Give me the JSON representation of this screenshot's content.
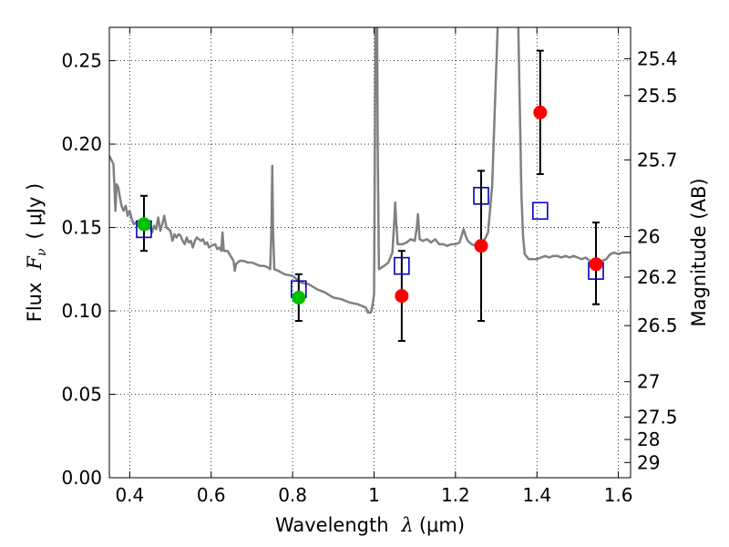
{
  "chart_data": {
    "type": "scatter",
    "xlabel_prefix": "Wavelength",
    "xlabel_symbol": "λ",
    "xlabel_unit": "(μm)",
    "ylabel_prefix": "Flux",
    "ylabel_symbol": "F",
    "ylabel_sub": "ν",
    "ylabel_unit": "( μJy )",
    "y2label": "Magnitude (AB)",
    "xlim": [
      0.35,
      1.63
    ],
    "ylim": [
      0.0,
      0.27
    ],
    "grid": true,
    "x_ticks": [
      0.4,
      0.6,
      0.8,
      1.0,
      1.2,
      1.4,
      1.6
    ],
    "x_tick_labels": [
      "0.4",
      "0.6",
      "0.8",
      "1",
      "1.2",
      "1.4",
      "1.6"
    ],
    "y_ticks": [
      0.0,
      0.05,
      0.1,
      0.15,
      0.2,
      0.25
    ],
    "y_tick_labels": [
      "0.00",
      "0.05",
      "0.10",
      "0.15",
      "0.20",
      "0.25"
    ],
    "mag_ticks": [
      "25.4",
      "25.5",
      "25.7",
      "26",
      "26.2",
      "26.5",
      "27",
      "27.5",
      "28",
      "29"
    ],
    "colors": {
      "model": "#808080",
      "observed": "#ff0000",
      "secondary": "#00c000",
      "model_photometry": "#0000cc",
      "errorbar": "#000000"
    },
    "series": [
      {
        "kind": "line",
        "points": [
          [
            0.35,
            0.193
          ],
          [
            0.36,
            0.188
          ],
          [
            0.365,
            0.16
          ],
          [
            0.368,
            0.176
          ],
          [
            0.372,
            0.174
          ],
          [
            0.376,
            0.168
          ],
          [
            0.38,
            0.163
          ],
          [
            0.385,
            0.16
          ],
          [
            0.39,
            0.163
          ],
          [
            0.395,
            0.157
          ],
          [
            0.4,
            0.16
          ],
          [
            0.405,
            0.155
          ],
          [
            0.41,
            0.152
          ],
          [
            0.415,
            0.153
          ],
          [
            0.42,
            0.151
          ],
          [
            0.425,
            0.15
          ],
          [
            0.43,
            0.152
          ],
          [
            0.435,
            0.149
          ],
          [
            0.44,
            0.151
          ],
          [
            0.445,
            0.149
          ],
          [
            0.45,
            0.15
          ],
          [
            0.455,
            0.147
          ],
          [
            0.46,
            0.151
          ],
          [
            0.465,
            0.149
          ],
          [
            0.47,
            0.156
          ],
          [
            0.475,
            0.148
          ],
          [
            0.48,
            0.152
          ],
          [
            0.485,
            0.157
          ],
          [
            0.49,
            0.15
          ],
          [
            0.495,
            0.149
          ],
          [
            0.5,
            0.148
          ],
          [
            0.505,
            0.142
          ],
          [
            0.51,
            0.146
          ],
          [
            0.515,
            0.144
          ],
          [
            0.52,
            0.146
          ],
          [
            0.525,
            0.145
          ],
          [
            0.53,
            0.142
          ],
          [
            0.535,
            0.14
          ],
          [
            0.54,
            0.144
          ],
          [
            0.545,
            0.141
          ],
          [
            0.55,
            0.142
          ],
          [
            0.555,
            0.138
          ],
          [
            0.56,
            0.142
          ],
          [
            0.565,
            0.144
          ],
          [
            0.57,
            0.143
          ],
          [
            0.575,
            0.142
          ],
          [
            0.58,
            0.143
          ],
          [
            0.585,
            0.14
          ],
          [
            0.59,
            0.141
          ],
          [
            0.595,
            0.138
          ],
          [
            0.6,
            0.139
          ],
          [
            0.61,
            0.14
          ],
          [
            0.615,
            0.137
          ],
          [
            0.62,
            0.138
          ],
          [
            0.625,
            0.136
          ],
          [
            0.628,
            0.147
          ],
          [
            0.631,
            0.136
          ],
          [
            0.64,
            0.136
          ],
          [
            0.65,
            0.132
          ],
          [
            0.655,
            0.13
          ],
          [
            0.658,
            0.124
          ],
          [
            0.661,
            0.128
          ],
          [
            0.67,
            0.13
          ],
          [
            0.68,
            0.13
          ],
          [
            0.69,
            0.129
          ],
          [
            0.7,
            0.129
          ],
          [
            0.71,
            0.128
          ],
          [
            0.72,
            0.127
          ],
          [
            0.73,
            0.127
          ],
          [
            0.74,
            0.126
          ],
          [
            0.745,
            0.125
          ],
          [
            0.748,
            0.15
          ],
          [
            0.75,
            0.187
          ],
          [
            0.752,
            0.15
          ],
          [
            0.755,
            0.125
          ],
          [
            0.765,
            0.124
          ],
          [
            0.78,
            0.122
          ],
          [
            0.8,
            0.121
          ],
          [
            0.82,
            0.117
          ],
          [
            0.84,
            0.116
          ],
          [
            0.86,
            0.113
          ],
          [
            0.88,
            0.111
          ],
          [
            0.9,
            0.108
          ],
          [
            0.92,
            0.107
          ],
          [
            0.94,
            0.105
          ],
          [
            0.96,
            0.104
          ],
          [
            0.98,
            0.102
          ],
          [
            0.985,
            0.099
          ],
          [
            0.992,
            0.099
          ],
          [
            0.996,
            0.103
          ],
          [
            1.0,
            0.11
          ],
          [
            1.002,
            0.2
          ],
          [
            1.004,
            0.3
          ],
          [
            1.007,
            0.3
          ],
          [
            1.009,
            0.2
          ],
          [
            1.012,
            0.125
          ],
          [
            1.025,
            0.127
          ],
          [
            1.035,
            0.129
          ],
          [
            1.045,
            0.135
          ],
          [
            1.05,
            0.155
          ],
          [
            1.052,
            0.165
          ],
          [
            1.054,
            0.155
          ],
          [
            1.058,
            0.14
          ],
          [
            1.07,
            0.14
          ],
          [
            1.08,
            0.141
          ],
          [
            1.09,
            0.143
          ],
          [
            1.1,
            0.142
          ],
          [
            1.105,
            0.15
          ],
          [
            1.108,
            0.158
          ],
          [
            1.112,
            0.143
          ],
          [
            1.12,
            0.142
          ],
          [
            1.13,
            0.143
          ],
          [
            1.14,
            0.141
          ],
          [
            1.15,
            0.143
          ],
          [
            1.16,
            0.14
          ],
          [
            1.17,
            0.14
          ],
          [
            1.18,
            0.139
          ],
          [
            1.19,
            0.14
          ],
          [
            1.2,
            0.14
          ],
          [
            1.21,
            0.141
          ],
          [
            1.215,
            0.145
          ],
          [
            1.22,
            0.149
          ],
          [
            1.225,
            0.145
          ],
          [
            1.23,
            0.142
          ],
          [
            1.24,
            0.14
          ],
          [
            1.25,
            0.139
          ],
          [
            1.26,
            0.141
          ],
          [
            1.27,
            0.142
          ],
          [
            1.28,
            0.147
          ],
          [
            1.29,
            0.175
          ],
          [
            1.3,
            0.245
          ],
          [
            1.308,
            0.3
          ],
          [
            1.32,
            0.3
          ],
          [
            1.33,
            0.275
          ],
          [
            1.336,
            0.3
          ],
          [
            1.352,
            0.3
          ],
          [
            1.358,
            0.22
          ],
          [
            1.362,
            0.17
          ],
          [
            1.366,
            0.145
          ],
          [
            1.37,
            0.134
          ],
          [
            1.38,
            0.131
          ],
          [
            1.39,
            0.131
          ],
          [
            1.4,
            0.131
          ],
          [
            1.41,
            0.132
          ],
          [
            1.42,
            0.133
          ],
          [
            1.43,
            0.132
          ],
          [
            1.44,
            0.133
          ],
          [
            1.45,
            0.133
          ],
          [
            1.46,
            0.132
          ],
          [
            1.47,
            0.133
          ],
          [
            1.48,
            0.132
          ],
          [
            1.49,
            0.133
          ],
          [
            1.5,
            0.132
          ],
          [
            1.51,
            0.131
          ],
          [
            1.52,
            0.132
          ],
          [
            1.53,
            0.13
          ],
          [
            1.54,
            0.128
          ],
          [
            1.55,
            0.129
          ],
          [
            1.56,
            0.13
          ],
          [
            1.57,
            0.131
          ],
          [
            1.58,
            0.134
          ],
          [
            1.59,
            0.135
          ],
          [
            1.6,
            0.134
          ],
          [
            1.61,
            0.135
          ],
          [
            1.62,
            0.135
          ],
          [
            1.63,
            0.135
          ]
        ]
      },
      {
        "kind": "errorbar",
        "points": [
          {
            "x": 0.435,
            "y": 0.152,
            "lo": 0.136,
            "hi": 0.169
          },
          {
            "x": 0.815,
            "y": 0.108,
            "lo": 0.094,
            "hi": 0.122
          },
          {
            "x": 1.068,
            "y": 0.109,
            "lo": 0.082,
            "hi": 0.136
          },
          {
            "x": 1.263,
            "y": 0.139,
            "lo": 0.094,
            "hi": 0.184
          },
          {
            "x": 1.408,
            "y": 0.219,
            "lo": 0.182,
            "hi": 0.256
          },
          {
            "x": 1.545,
            "y": 0.128,
            "lo": 0.104,
            "hi": 0.153
          }
        ]
      },
      {
        "kind": "square",
        "points": [
          [
            0.435,
            0.149
          ],
          [
            0.815,
            0.113
          ],
          [
            1.068,
            0.127
          ],
          [
            1.263,
            0.169
          ],
          [
            1.408,
            0.16
          ],
          [
            1.545,
            0.124
          ]
        ]
      },
      {
        "kind": "circle",
        "color_key": "secondary",
        "points": [
          [
            0.435,
            0.152
          ],
          [
            0.815,
            0.108
          ]
        ]
      },
      {
        "kind": "circle",
        "color_key": "observed",
        "points": [
          [
            1.068,
            0.109
          ],
          [
            1.263,
            0.139
          ],
          [
            1.408,
            0.219
          ],
          [
            1.545,
            0.128
          ]
        ]
      }
    ]
  }
}
